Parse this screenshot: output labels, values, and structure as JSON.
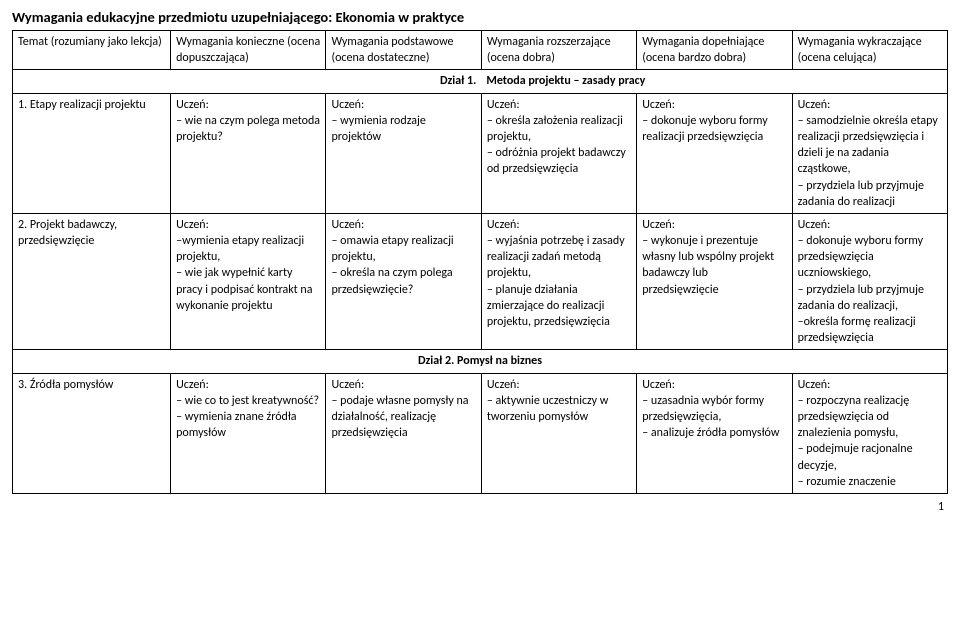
{
  "title": "Wymagania edukacyjne przedmiotu uzupełniającego: Ekonomia w praktyce",
  "headers": {
    "c0": "Temat (rozumiany jako lekcja)",
    "c1": "Wymagania konieczne (ocena dopuszczająca)",
    "c2": "Wymagania podstawowe (ocena dostateczne)",
    "c3": "Wymagania rozszerzające (ocena dobra)",
    "c4": "Wymagania dopełniające (ocena bardzo dobra)",
    "c5": "Wymagania wykraczające (ocena celująca)"
  },
  "section1_left": "Dział 1.",
  "section1_right": " Metoda projektu – zasady pracy",
  "row1": {
    "topic": "1. Etapy realizacji projektu",
    "c1": "Uczeń:\n– wie na czym polega metoda projektu?",
    "c2": "Uczeń:\n– wymienia rodzaje projektów",
    "c3": "Uczeń:\n– określa założenia realizacji projektu,\n– odróżnia projekt badawczy od przedsięwzięcia",
    "c4": "Uczeń:\n– dokonuje wyboru formy realizacji przedsięwzięcia",
    "c5": "Uczeń:\n– samodzielnie określa etapy realizacji przedsięwzięcia i dzieli je na zadania cząstkowe,\n– przydziela lub przyjmuje zadania do realizacji"
  },
  "row2": {
    "topic": "2. Projekt badawczy, przedsięwzięcie",
    "c1": "Uczeń:\n–wymienia etapy realizacji projektu,\n– wie jak wypełnić karty pracy i podpisać kontrakt na wykonanie projektu",
    "c2": "Uczeń:\n– omawia etapy realizacji projektu,\n– określa na czym polega przedsięwzięcie?",
    "c3": "Uczeń:\n– wyjaśnia potrzebę i zasady realizacji zadań metodą projektu,\n– planuje działania zmierzające do realizacji projektu, przedsięwzięcia",
    "c4": "Uczeń:\n– wykonuje i prezentuje własny lub wspólny projekt badawczy lub przedsięwzięcie",
    "c5": "Uczeń:\n– dokonuje wyboru formy przedsięwzięcia uczniowskiego,\n– przydziela lub przyjmuje zadania do realizacji,\n–określa formę realizacji przedsięwzięcia"
  },
  "section2": "Dział 2. Pomysł na biznes",
  "row3": {
    "topic": "3. Źródła pomysłów",
    "c1": "Uczeń:\n– wie co to jest kreatywność?\n– wymienia znane źródła pomysłów",
    "c2": "Uczeń:\n– podaje własne pomysły na działalność, realizację przedsięwzięcia",
    "c3": "Uczeń:\n– aktywnie uczestniczy w tworzeniu pomysłów",
    "c4": "Uczeń:\n– uzasadnia wybór formy przedsięwzięcia,\n– analizuje źródła pomysłów",
    "c5": "Uczeń:\n– rozpoczyna realizację przedsięwzięcia od znalezienia pomysłu,\n– podejmuje racjonalne decyzje,\n– rozumie znaczenie"
  },
  "pageNumber": "1"
}
